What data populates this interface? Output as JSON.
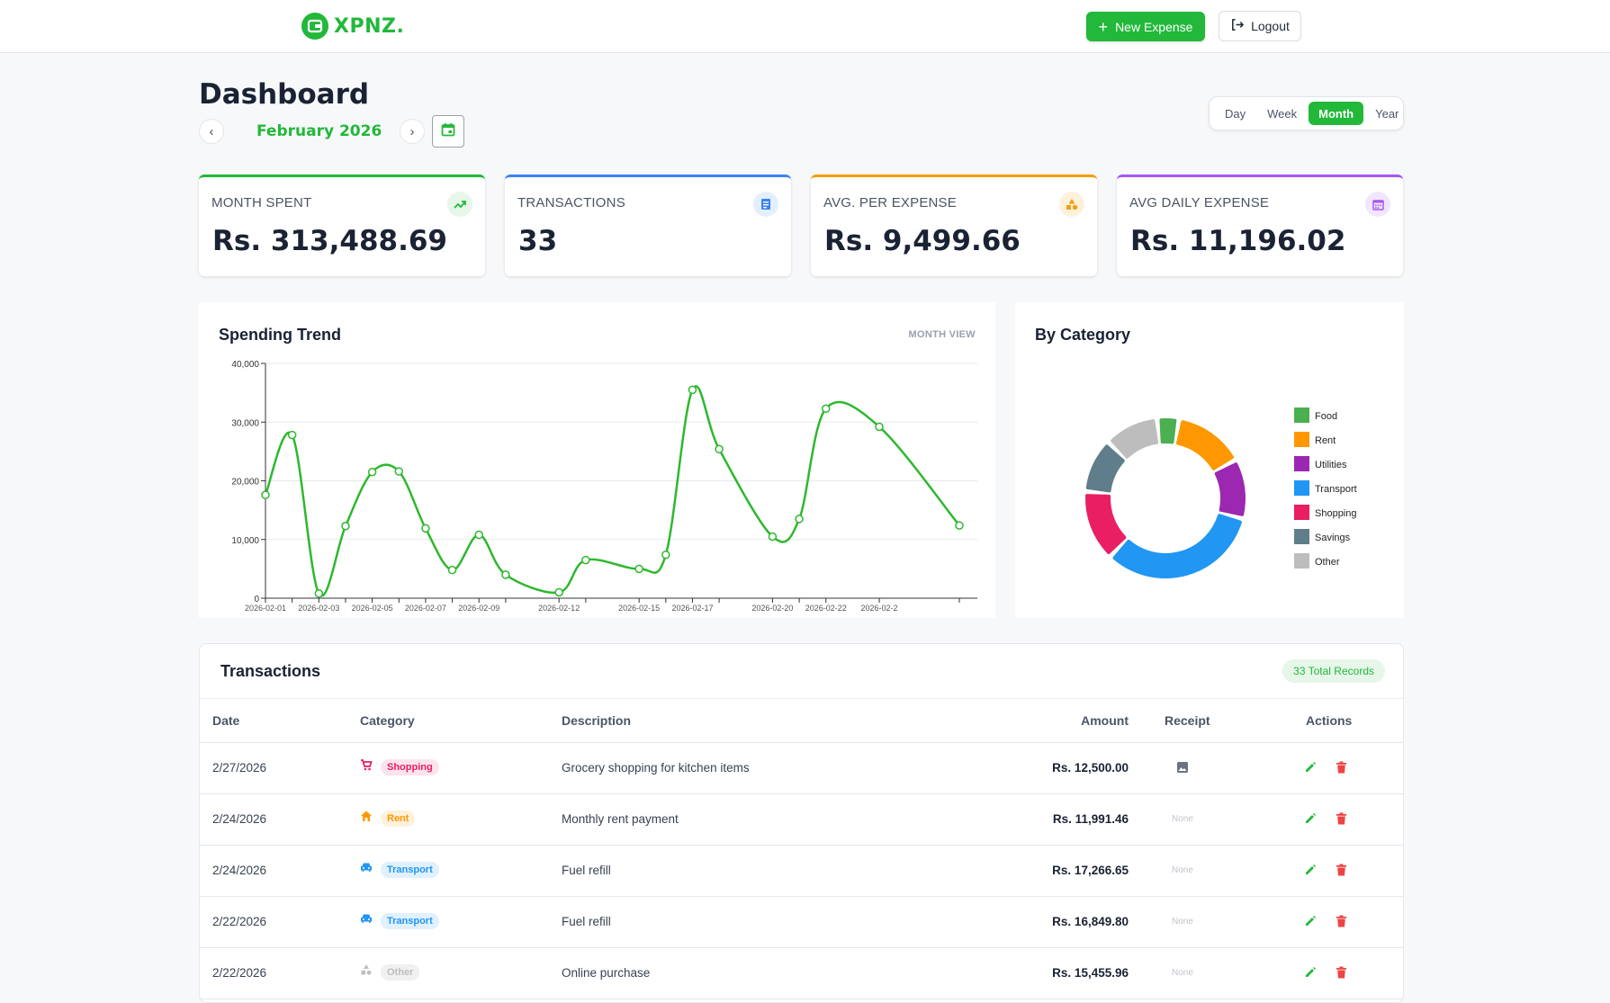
{
  "brand": {
    "name": "XPNZ.",
    "color": "#22b83a"
  },
  "header": {
    "new_expense_label": "New Expense",
    "logout_label": "Logout"
  },
  "dashboard": {
    "title": "Dashboard",
    "period_label": "February 2026",
    "range_options": [
      "Day",
      "Week",
      "Month",
      "Year"
    ],
    "range_selected": "Month"
  },
  "stats": [
    {
      "label": "MONTH SPENT",
      "value": "Rs. 313,488.69",
      "color": "#22b83a",
      "icon": "trending-up-icon"
    },
    {
      "label": "TRANSACTIONS",
      "value": "33",
      "color": "#3b82f6",
      "icon": "receipt-icon"
    },
    {
      "label": "AVG. PER EXPENSE",
      "value": "Rs. 9,499.66",
      "color": "#f59e0b",
      "icon": "shapes-icon"
    },
    {
      "label": "AVG DAILY EXPENSE",
      "value": "Rs. 11,196.02",
      "color": "#a855f7",
      "icon": "calendar-icon"
    }
  ],
  "trend": {
    "title": "Spending Trend",
    "view_label": "MONTH VIEW"
  },
  "category_panel": {
    "title": "By Category"
  },
  "chart_data": [
    {
      "type": "line",
      "title": "Spending Trend",
      "xlabel": "",
      "ylabel": "",
      "ylim": [
        0,
        40000
      ],
      "yticks": [
        "0",
        "10,000",
        "20,000",
        "30,000",
        "40,000"
      ],
      "xtick_labels": [
        "2026-02-01",
        "2026-02-03",
        "2026-02-05",
        "2026-02-07",
        "2026-02-09",
        "2026-02-12",
        "2026-02-15",
        "2026-02-17",
        "2026-02-20",
        "2026-02-22",
        "2026-02-2"
      ],
      "grid": true,
      "color": "#2eb82e",
      "x": [
        "2026-02-01",
        "2026-02-02",
        "2026-02-03",
        "2026-02-04",
        "2026-02-05",
        "2026-02-06",
        "2026-02-07",
        "2026-02-08",
        "2026-02-09",
        "2026-02-10",
        "2026-02-12",
        "2026-02-13",
        "2026-02-15",
        "2026-02-16",
        "2026-02-17",
        "2026-02-18",
        "2026-02-20",
        "2026-02-21",
        "2026-02-22",
        "2026-02-24",
        "2026-02-27"
      ],
      "values": [
        17600,
        27800,
        800,
        12300,
        21500,
        21600,
        11900,
        4800,
        10800,
        4000,
        1000,
        6500,
        5000,
        7400,
        35500,
        25400,
        10500,
        13500,
        32300,
        29200,
        12400
      ]
    },
    {
      "type": "pie",
      "title": "By Category",
      "legend_position": "right",
      "categories": [
        "Food",
        "Rent",
        "Utilities",
        "Transport",
        "Shopping",
        "Savings",
        "Other"
      ],
      "values": [
        4,
        13,
        11,
        30,
        13,
        10,
        10
      ],
      "colors": [
        "#4caf50",
        "#ff9800",
        "#9c27b0",
        "#2196f3",
        "#e91e63",
        "#607d8b",
        "#bdbdbd"
      ]
    }
  ],
  "transactions": {
    "title": "Transactions",
    "total_label": "33 Total Records",
    "columns": {
      "date": "Date",
      "category": "Category",
      "description": "Description",
      "amount": "Amount",
      "receipt": "Receipt",
      "actions": "Actions"
    },
    "rows": [
      {
        "date": "2/27/2026",
        "category": "Shopping",
        "cat_color": "#e91e63",
        "cat_bg": "#fde4ec",
        "cat_icon": "cart-icon",
        "description": "Grocery shopping for kitchen items",
        "amount": "Rs. 12,500.00",
        "receipt": "image"
      },
      {
        "date": "2/24/2026",
        "category": "Rent",
        "cat_color": "#ff9800",
        "cat_bg": "#fff1dc",
        "cat_icon": "home-icon",
        "description": "Monthly rent payment",
        "amount": "Rs. 11,991.46",
        "receipt": "None"
      },
      {
        "date": "2/24/2026",
        "category": "Transport",
        "cat_color": "#2196f3",
        "cat_bg": "#e0f0fd",
        "cat_icon": "car-icon",
        "description": "Fuel refill",
        "amount": "Rs. 17,266.65",
        "receipt": "None"
      },
      {
        "date": "2/22/2026",
        "category": "Transport",
        "cat_color": "#2196f3",
        "cat_bg": "#e0f0fd",
        "cat_icon": "car-icon",
        "description": "Fuel refill",
        "amount": "Rs. 16,849.80",
        "receipt": "None"
      },
      {
        "date": "2/22/2026",
        "category": "Other",
        "cat_color": "#bdbdbd",
        "cat_bg": "#f0f0f0",
        "cat_icon": "shapes-icon",
        "description": "Online purchase",
        "amount": "Rs. 15,455.96",
        "receipt": "None"
      }
    ]
  }
}
